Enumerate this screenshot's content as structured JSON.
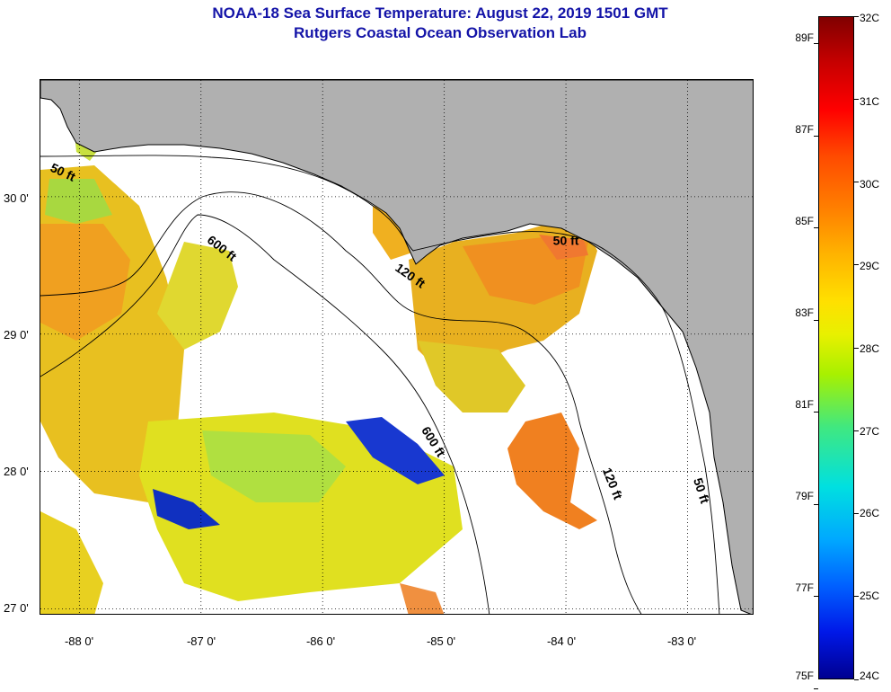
{
  "title": {
    "line1": "NOAA-18 Sea Surface Temperature:  August 22, 2019 1501 GMT",
    "line2": "Rutgers Coastal Ocean Observation Lab"
  },
  "map": {
    "lon_range": [
      -88.32,
      -82.45
    ],
    "lat_range": [
      26.95,
      30.85
    ],
    "lat_ticks": [
      {
        "value": 27,
        "label": "27 0'"
      },
      {
        "value": 28,
        "label": "28 0'"
      },
      {
        "value": 29,
        "label": "29 0'"
      },
      {
        "value": 30,
        "label": "30 0'"
      }
    ],
    "lon_ticks": [
      {
        "value": -88,
        "label": "-88 0'"
      },
      {
        "value": -87,
        "label": "-87 0'"
      },
      {
        "value": -86,
        "label": "-86 0'"
      },
      {
        "value": -85,
        "label": "-85 0'"
      },
      {
        "value": -84,
        "label": "-84 0'"
      },
      {
        "value": -83,
        "label": "-83 0'"
      }
    ],
    "gridlines": "dotted",
    "colors": {
      "land": "#b0b0b0",
      "ocean_no_data": "#ffffff",
      "coastline": "#000000",
      "contour": "#000000"
    },
    "contour_labels": [
      {
        "text": "50 ft",
        "lon": -88.15,
        "lat": 30.15,
        "rotate": 25
      },
      {
        "text": "600 ft",
        "lon": -86.85,
        "lat": 29.6,
        "rotate": 38
      },
      {
        "text": "120 ft",
        "lon": -85.3,
        "lat": 29.4,
        "rotate": 35
      },
      {
        "text": "50 ft",
        "lon": -84.0,
        "lat": 29.65,
        "rotate": 0
      },
      {
        "text": "600 ft",
        "lon": -85.12,
        "lat": 28.2,
        "rotate": 58
      },
      {
        "text": "120 ft",
        "lon": -83.65,
        "lat": 27.9,
        "rotate": 68
      },
      {
        "text": "50 ft",
        "lon": -82.92,
        "lat": 27.85,
        "rotate": 72
      }
    ]
  },
  "colorbar": {
    "celsius": [
      {
        "value": 32,
        "label": "32C"
      },
      {
        "value": 31,
        "label": "31C"
      },
      {
        "value": 30,
        "label": "30C"
      },
      {
        "value": 29,
        "label": "29C"
      },
      {
        "value": 28,
        "label": "28C"
      },
      {
        "value": 27,
        "label": "27C"
      },
      {
        "value": 26,
        "label": "26C"
      },
      {
        "value": 25,
        "label": "25C"
      },
      {
        "value": 24,
        "label": "24C"
      }
    ],
    "fahrenheit": [
      {
        "value": 89,
        "label": "89F"
      },
      {
        "value": 87,
        "label": "87F"
      },
      {
        "value": 85,
        "label": "85F"
      },
      {
        "value": 83,
        "label": "83F"
      },
      {
        "value": 81,
        "label": "81F"
      },
      {
        "value": 79,
        "label": "79F"
      },
      {
        "value": 77,
        "label": "77F"
      },
      {
        "value": 75,
        "label": "75F"
      }
    ],
    "celsius_range": [
      24,
      32
    ]
  }
}
